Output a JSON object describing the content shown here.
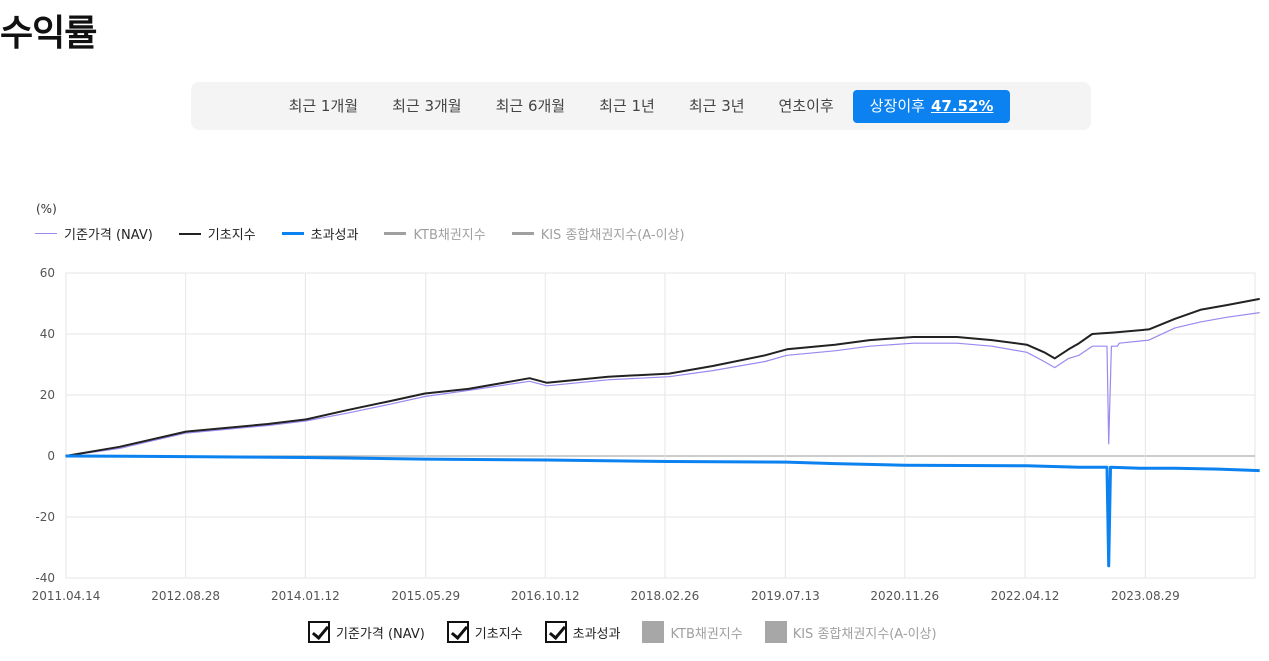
{
  "page": {
    "title": "수익률"
  },
  "periods": {
    "tabs": [
      "최근 1개월",
      "최근 3개월",
      "최근 6개월",
      "최근 1년",
      "최근 3년",
      "연초이후"
    ],
    "active": {
      "label": "상장이후",
      "return": "47.52%"
    }
  },
  "colors": {
    "nav": "#9c88f0",
    "base": "#222222",
    "excess": "#0b82f0",
    "disabled": "#a0a0a0",
    "accent": "#0b82f0"
  },
  "checkboxes": [
    {
      "label": "기준가격 (NAV)",
      "checked": true
    },
    {
      "label": "기초지수",
      "checked": true
    },
    {
      "label": "초과성과",
      "checked": true
    },
    {
      "label": "KTB채권지수",
      "checked": false
    },
    {
      "label": "KIS 종합채권지수(A-이상)",
      "checked": false
    }
  ],
  "chart_data": {
    "type": "line",
    "unit": "(%)",
    "ylim": [
      -40,
      60
    ],
    "yticks": [
      60,
      40,
      20,
      0,
      -20,
      -40
    ],
    "xticks": [
      "2011.04.14",
      "2012.08.28",
      "2014.01.12",
      "2015.05.29",
      "2016.10.12",
      "2018.02.26",
      "2019.07.13",
      "2020.11.26",
      "2022.04.12",
      "2023.08.29"
    ],
    "x_end": "2024.12",
    "grid": true,
    "legend": "top-left",
    "series": [
      {
        "name": "기준가격 (NAV)",
        "x": [
          2011.28,
          2011.9,
          2012.66,
          2013.6,
          2014.04,
          2014.5,
          2015.0,
          2015.4,
          2015.9,
          2016.6,
          2016.8,
          2017.5,
          2018.2,
          2018.7,
          2019.3,
          2019.55,
          2020.1,
          2020.5,
          2021.0,
          2021.5,
          2021.9,
          2022.3,
          2022.5,
          2022.62,
          2022.78,
          2022.9,
          2023.05,
          2023.22,
          2023.24,
          2023.27,
          2023.34,
          2023.36,
          2023.7,
          2024.0,
          2024.3,
          2024.6,
          2024.97
        ],
        "y": [
          0,
          2.5,
          7.5,
          10,
          11.5,
          14,
          17,
          19.5,
          21.5,
          24.5,
          23,
          25,
          26,
          28,
          31,
          33,
          34.5,
          36,
          37,
          37,
          36,
          34,
          31,
          29,
          32,
          33,
          36,
          36,
          4,
          36,
          36,
          37,
          38,
          42,
          44,
          45.5,
          47
        ]
      },
      {
        "name": "기초지수",
        "x": [
          2011.28,
          2011.9,
          2012.66,
          2013.6,
          2014.04,
          2014.5,
          2015.0,
          2015.4,
          2015.9,
          2016.6,
          2016.8,
          2017.5,
          2018.2,
          2018.7,
          2019.3,
          2019.55,
          2020.1,
          2020.5,
          2021.0,
          2021.5,
          2021.9,
          2022.3,
          2022.5,
          2022.62,
          2022.78,
          2022.9,
          2023.05,
          2023.3,
          2023.7,
          2024.0,
          2024.3,
          2024.6,
          2024.97
        ],
        "y": [
          0,
          3,
          8,
          10.5,
          12,
          15,
          18,
          20.5,
          22,
          25.5,
          24,
          26,
          27,
          29.5,
          33,
          35,
          36.5,
          38,
          39,
          39,
          38,
          36.5,
          34,
          32,
          35,
          37,
          40,
          40.5,
          41.5,
          45,
          48,
          49.5,
          51.5
        ]
      },
      {
        "name": "초과성과",
        "x": [
          2011.28,
          2012.66,
          2014.04,
          2015.4,
          2016.8,
          2018.2,
          2019.55,
          2020.1,
          2020.9,
          2022.3,
          2022.9,
          2023.22,
          2023.24,
          2023.26,
          2023.6,
          2024.0,
          2024.5,
          2024.97
        ],
        "y": [
          0,
          -0.2,
          -0.5,
          -1,
          -1.3,
          -1.8,
          -2,
          -2.5,
          -3,
          -3.2,
          -3.7,
          -3.7,
          -36,
          -3.7,
          -4,
          -4,
          -4.3,
          -4.8
        ]
      }
    ]
  }
}
